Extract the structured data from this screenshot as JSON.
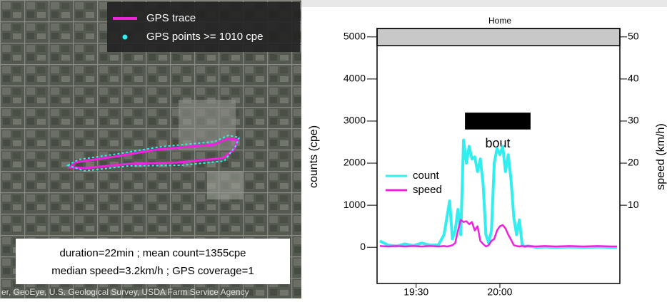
{
  "map": {
    "legend": [
      "GPS trace",
      "GPS points >= 1010 cpe"
    ],
    "summary": [
      "duration=22min ; mean count=1355cpe",
      "median speed=3.2km/h ; GPS coverage=1"
    ],
    "attribution": "er, GeoEye, U.S. Geological Survey, USDA Farm Service Agency"
  },
  "chart_data": {
    "type": "line",
    "strip_label": "Home",
    "ylabel": "counts (cpe)",
    "y2label": "speed (km/h)",
    "x": [
      1157,
      1160,
      1163,
      1166,
      1169,
      1172,
      1175,
      1178,
      1180,
      1181,
      1182,
      1183,
      1184,
      1185,
      1186,
      1187,
      1188,
      1189,
      1190,
      1191,
      1192,
      1193,
      1194,
      1195,
      1196,
      1197,
      1198,
      1199,
      1200,
      1201,
      1202,
      1203,
      1204,
      1205,
      1206,
      1207,
      1208,
      1209,
      1210,
      1213,
      1216,
      1220,
      1225,
      1230,
      1235,
      1240,
      1242
    ],
    "series": [
      {
        "name": "count",
        "color": "#33eeee",
        "values": [
          150,
          50,
          30,
          80,
          40,
          100,
          50,
          60,
          300,
          700,
          1100,
          200,
          400,
          900,
          300,
          2550,
          2000,
          2400,
          2100,
          2150,
          1800,
          2100,
          1500,
          300,
          100,
          400,
          2000,
          2350,
          2200,
          2400,
          1800,
          2200,
          1600,
          700,
          300,
          650,
          50,
          20,
          30,
          0,
          10,
          0,
          10,
          0,
          10,
          0,
          0
        ]
      },
      {
        "name": "speed",
        "color": "#ee22dd",
        "axis": "y2",
        "values": [
          0.3,
          0.2,
          0.3,
          0.2,
          0.3,
          0.2,
          0.3,
          0.2,
          0.3,
          0.2,
          0.3,
          0.5,
          1,
          4,
          6.5,
          6,
          6.2,
          5.5,
          6,
          4,
          5,
          1.5,
          0.8,
          0.2,
          0.5,
          1.5,
          2,
          4,
          5,
          5.3,
          4.5,
          3,
          1.8,
          0.5,
          0.3,
          0.2,
          0.3,
          0.2,
          0.3,
          0.2,
          0.3,
          0.2,
          0.3,
          0.2,
          0.3,
          0.2,
          0.2
        ]
      }
    ],
    "annotation": {
      "label": "bout",
      "start": 1187.5,
      "end": 1211
    },
    "xlim": [
      1156,
      1243
    ],
    "xticks": [
      {
        "value": 1170,
        "label": "19:30"
      },
      {
        "value": 1200,
        "label": "20:00"
      }
    ],
    "ylim": [
      -860,
      5200
    ],
    "yticks": [
      0,
      1000,
      2000,
      3000,
      4000,
      5000
    ],
    "y2lim": [
      -8.6,
      52
    ],
    "y2ticks": [
      10,
      20,
      30,
      40,
      50
    ],
    "legend": "center-left"
  }
}
